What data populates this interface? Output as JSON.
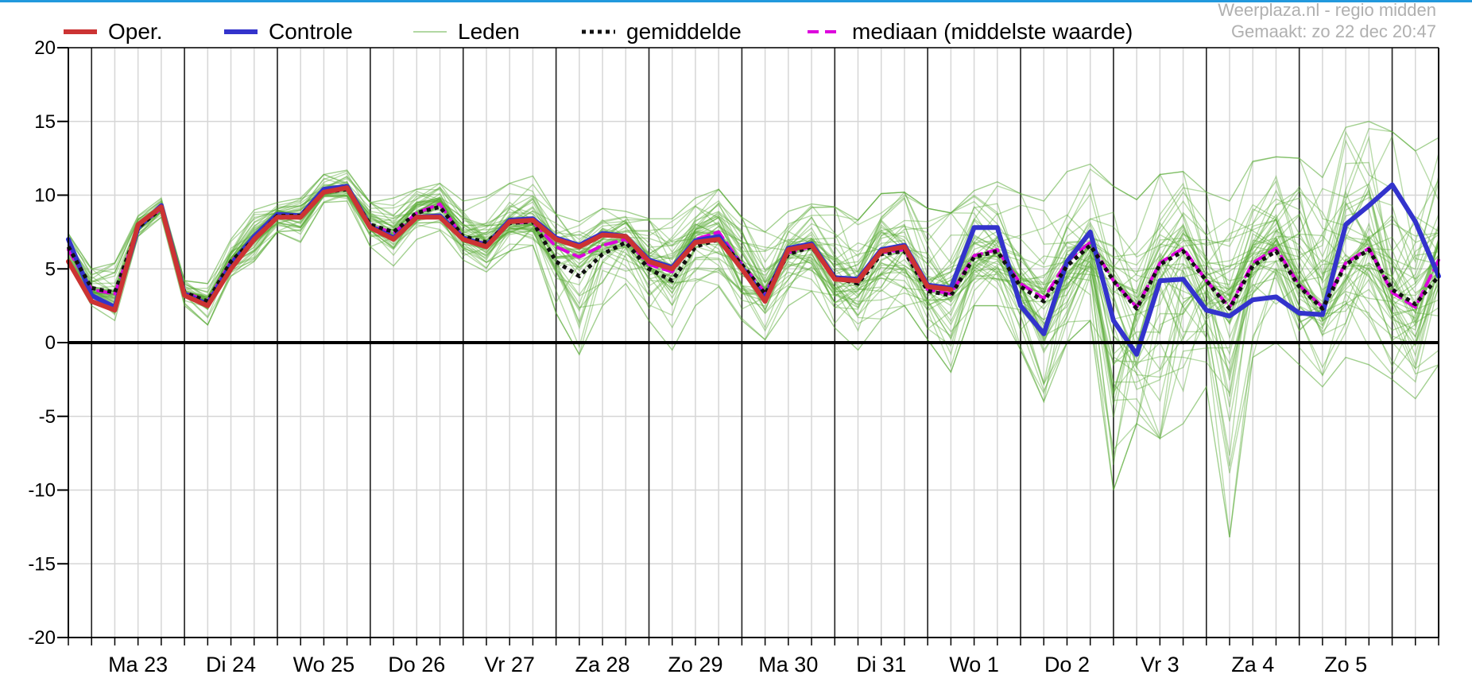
{
  "colors": {
    "oper": "#cc3333",
    "controle": "#3333cc",
    "leden": "#55aa33",
    "gemiddelde": "#111111",
    "mediaan": "#dd00dd",
    "frame_top": "#2299dd"
  },
  "chart_data": {
    "type": "line",
    "title": "",
    "xlabel": "",
    "ylabel": "",
    "credits": [
      "Weerplaza.nl - regio midden",
      "Gemaakt: zo 22 dec 20:47"
    ],
    "ylim": [
      -20,
      20
    ],
    "yticks": [
      20,
      15,
      10,
      5,
      0,
      -5,
      -10,
      -15,
      -20
    ],
    "day_labels": [
      "Ma 23",
      "Di 24",
      "Wo 25",
      "Do 26",
      "Vr 27",
      "Za 28",
      "Zo 29",
      "Ma 30",
      "Di 31",
      "Wo 1",
      "Do 2",
      "Vr 3",
      "Za 4",
      "Zo 5"
    ],
    "x_unit": "days since start of chart (6-hour steps)",
    "xlim": [
      0,
      14.75
    ],
    "grid": true,
    "legend_position": "top",
    "legend": [
      {
        "key": "oper",
        "label": "Oper."
      },
      {
        "key": "controle",
        "label": "Controle"
      },
      {
        "key": "leden",
        "label": "Leden"
      },
      {
        "key": "gemiddelde",
        "label": "gemiddelde"
      },
      {
        "key": "mediaan",
        "label": "mediaan (middelste waarde)"
      }
    ],
    "series": [
      {
        "name": "Oper.",
        "key": "oper",
        "x": [
          0,
          0.25,
          0.5,
          0.75,
          1,
          1.25,
          1.5,
          1.75,
          2,
          2.25,
          2.5,
          2.75,
          3,
          3.25,
          3.5,
          3.75,
          4,
          4.25,
          4.5,
          4.75,
          5,
          5.25,
          5.5,
          5.75,
          6,
          6.25,
          6.5,
          6.75,
          7,
          7.25,
          7.5,
          7.75,
          8,
          8.25,
          8.5,
          8.75,
          9,
          9.25,
          9.5
        ],
        "y": [
          5.5,
          2.8,
          2.2,
          8,
          9.2,
          3.2,
          2.5,
          5,
          7,
          8.5,
          8.5,
          10.2,
          10.5,
          7.8,
          7,
          8.5,
          8.5,
          7,
          6.5,
          8.2,
          8.3,
          7,
          6.5,
          7.3,
          7.2,
          5.5,
          5,
          6.8,
          7,
          5,
          2.8,
          6.3,
          6.6,
          4.3,
          4.2,
          6.2,
          6.5,
          3.8,
          3.6
        ]
      },
      {
        "name": "Controle",
        "key": "controle",
        "x": [
          0,
          0.25,
          0.5,
          0.75,
          1,
          1.25,
          1.5,
          1.75,
          2,
          2.25,
          2.5,
          2.75,
          3,
          3.25,
          3.5,
          3.75,
          4,
          4.25,
          4.5,
          4.75,
          5,
          5.25,
          5.5,
          5.75,
          6,
          6.25,
          6.5,
          6.75,
          7,
          7.25,
          7.5,
          7.75,
          8,
          8.25,
          8.5,
          8.75,
          9,
          9.25,
          9.5,
          9.75,
          10,
          10.25,
          10.5,
          10.75,
          11,
          11.25,
          11.5,
          11.75,
          12,
          12.25,
          12.5,
          12.75,
          13,
          13.25,
          13.5,
          13.75,
          14,
          14.25,
          14.5,
          14.75
        ],
        "y": [
          7,
          3.2,
          2.4,
          7.8,
          9.3,
          3.3,
          2.6,
          5.3,
          7.2,
          8.7,
          8.6,
          10.4,
          10.6,
          7.9,
          7.1,
          8.5,
          8.6,
          7.1,
          6.6,
          8.3,
          8.4,
          7.1,
          6.6,
          7.4,
          7.2,
          5.6,
          5.1,
          6.9,
          7.2,
          5.1,
          3,
          6.4,
          6.7,
          4.4,
          4.3,
          6.3,
          6.6,
          3.9,
          3.7,
          7.8,
          7.8,
          2.5,
          0.6,
          5.5,
          7.5,
          1.5,
          -0.8,
          4.2,
          4.3,
          2.2,
          1.8,
          2.9,
          3.1,
          2,
          1.9,
          8,
          9.3,
          10.7,
          8.2,
          4.5
        ]
      },
      {
        "name": "gemiddelde",
        "key": "gemiddelde",
        "x": [
          0,
          0.25,
          0.5,
          0.75,
          1,
          1.25,
          1.5,
          1.75,
          2,
          2.25,
          2.5,
          2.75,
          3,
          3.25,
          3.5,
          3.75,
          4,
          4.25,
          4.5,
          4.75,
          5,
          5.25,
          5.5,
          5.75,
          6,
          6.25,
          6.5,
          6.75,
          7,
          7.25,
          7.5,
          7.75,
          8,
          8.25,
          8.5,
          8.75,
          9,
          9.25,
          9.5,
          9.75,
          10,
          10.25,
          10.5,
          10.75,
          11,
          11.25,
          11.5,
          11.75,
          12,
          12.25,
          12.5,
          12.75,
          13,
          13.25,
          13.5,
          13.75,
          14,
          14.25,
          14.5,
          14.75
        ],
        "y": [
          6.5,
          3.7,
          3.4,
          7.8,
          9.1,
          3.4,
          2.8,
          5.5,
          7,
          8.6,
          8.6,
          10.2,
          10.4,
          8,
          7.5,
          8.8,
          9.2,
          7.2,
          6.8,
          8.1,
          8.2,
          5.5,
          4.5,
          6,
          6.8,
          5,
          4.2,
          6.5,
          7,
          5.3,
          3.3,
          6,
          6.5,
          4.4,
          4,
          6,
          6.2,
          3.5,
          3.2,
          5.8,
          6.2,
          3.8,
          2.8,
          5.2,
          6.6,
          4.2,
          2.3,
          5.3,
          6.2,
          4.2,
          2.3,
          5.2,
          6.2,
          3.8,
          2.3,
          5.3,
          6.3,
          3.6,
          2.6,
          4.5
        ]
      },
      {
        "name": "mediaan (middelste waarde)",
        "key": "mediaan",
        "x": [
          0,
          0.25,
          0.5,
          0.75,
          1,
          1.25,
          1.5,
          1.75,
          2,
          2.25,
          2.5,
          2.75,
          3,
          3.25,
          3.5,
          3.75,
          4,
          4.25,
          4.5,
          4.75,
          5,
          5.25,
          5.5,
          5.75,
          6,
          6.25,
          6.5,
          6.75,
          7,
          7.25,
          7.5,
          7.75,
          8,
          8.25,
          8.5,
          8.75,
          9,
          9.25,
          9.5,
          9.75,
          10,
          10.25,
          10.5,
          10.75,
          11,
          11.25,
          11.5,
          11.75,
          12,
          12.25,
          12.5,
          12.75,
          13,
          13.25,
          13.5,
          13.75,
          14,
          14.25,
          14.5,
          14.75
        ],
        "y": [
          6.3,
          3.6,
          3.3,
          7.8,
          9.1,
          3.4,
          2.8,
          5.5,
          7,
          8.6,
          8.6,
          10.2,
          10.4,
          8,
          7.4,
          8.8,
          9.4,
          7.1,
          6.7,
          8.1,
          8.2,
          6.5,
          5.8,
          6.6,
          7,
          5.3,
          4.8,
          7,
          7.5,
          5.3,
          3.4,
          6.1,
          6.5,
          4.4,
          4.1,
          6.1,
          6.3,
          3.6,
          3.3,
          5.9,
          6.3,
          4,
          3,
          5.5,
          6.8,
          4.2,
          2.4,
          5.4,
          6.4,
          4.2,
          2.4,
          5.4,
          6.4,
          3.9,
          2.4,
          5.4,
          6.4,
          3.4,
          2.4,
          5.6
        ]
      }
    ],
    "members": {
      "name": "Leden",
      "key": "leden",
      "x": [
        0,
        0.25,
        0.5,
        0.75,
        1,
        1.25,
        1.5,
        1.75,
        2,
        2.25,
        2.5,
        2.75,
        3,
        3.25,
        3.5,
        3.75,
        4,
        4.25,
        4.5,
        4.75,
        5,
        5.25,
        5.5,
        5.75,
        6,
        6.25,
        6.5,
        6.75,
        7,
        7.25,
        7.5,
        7.75,
        8,
        8.25,
        8.5,
        8.75,
        9,
        9.25,
        9.5,
        9.75,
        10,
        10.25,
        10.5,
        10.75,
        11,
        11.25,
        11.5,
        11.75,
        12,
        12.25,
        12.5,
        12.75,
        13,
        13.25,
        13.5,
        13.75,
        14,
        14.25,
        14.5,
        14.75
      ],
      "min": [
        5.3,
        2.5,
        1.5,
        7.2,
        8.5,
        2.5,
        1.2,
        4.5,
        5.5,
        7.5,
        6.8,
        9.5,
        9.6,
        6.5,
        5.2,
        7,
        7.6,
        5.6,
        4.8,
        6.2,
        6.6,
        2,
        -0.8,
        2.5,
        4,
        1.5,
        -0.5,
        2.5,
        3.8,
        1.5,
        0.2,
        2.5,
        3.5,
        1,
        -0.5,
        1.6,
        2.5,
        0.2,
        -2,
        2.5,
        2.5,
        -0.5,
        -4,
        0,
        1.5,
        -10,
        -5.5,
        -6.5,
        -5.5,
        -3,
        -13.2,
        -1,
        0,
        -1.5,
        -3,
        -1,
        -1.5,
        -2.5,
        -3.8,
        -1.5
      ],
      "max": [
        7.4,
        5,
        5.4,
        8.6,
        9.8,
        4.2,
        4,
        7,
        9,
        9.5,
        9.8,
        11.4,
        11.7,
        9.5,
        9.8,
        10.4,
        10.8,
        9.6,
        9.9,
        10.8,
        11.3,
        8.7,
        8.2,
        9.1,
        8.9,
        8.4,
        8.4,
        9.8,
        10.4,
        8.5,
        7.5,
        8.9,
        9.4,
        9.2,
        8.3,
        10.1,
        10.2,
        9.1,
        8.8,
        10.3,
        10.9,
        10.1,
        9.6,
        11.6,
        12.1,
        10.6,
        9.7,
        11.4,
        11.6,
        10.2,
        9.6,
        12.3,
        12.6,
        12.5,
        11.2,
        14.6,
        15,
        14.3,
        13,
        13.9
      ]
    }
  }
}
